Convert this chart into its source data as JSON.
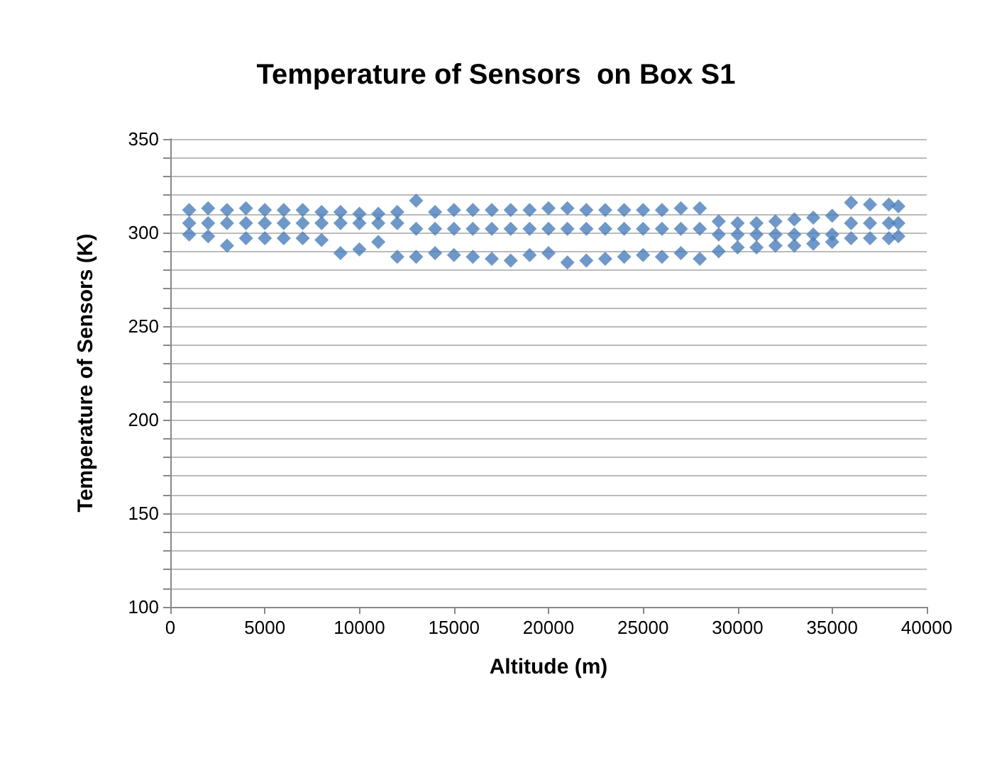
{
  "chart_data": {
    "type": "scatter",
    "title": "Temperature of Sensors  on Box S1",
    "xlabel": "Altitude (m)",
    "ylabel": "Temperature of Sensors (K)",
    "series": [
      {
        "color": "#4a7ebb",
        "x": [
          1000,
          2000,
          3000,
          4000,
          5000,
          6000,
          7000,
          8000,
          9000,
          10000,
          11000,
          12000,
          13000,
          14000,
          15000,
          16000,
          17000,
          18000,
          19000,
          20000,
          21000,
          22000,
          23000,
          24000,
          25000,
          26000,
          27000,
          28000,
          29000,
          30000,
          31000,
          32000,
          33000,
          34000,
          35000,
          36000,
          37000,
          38000,
          38500
        ],
        "values": [
          312,
          313,
          312,
          313,
          312,
          312,
          312,
          311,
          311,
          310,
          310,
          311,
          317,
          311,
          312,
          312,
          312,
          312,
          312,
          313,
          313,
          312,
          312,
          312,
          312,
          312,
          313,
          313,
          306,
          305,
          305,
          306,
          307,
          308,
          309,
          316,
          315,
          315,
          314
        ]
      },
      {
        "color": "#4a7ebb",
        "x": [
          1000,
          2000,
          3000,
          4000,
          5000,
          6000,
          7000,
          8000,
          9000,
          10000,
          11000,
          12000,
          13000,
          14000,
          15000,
          16000,
          17000,
          18000,
          19000,
          20000,
          21000,
          22000,
          23000,
          24000,
          25000,
          26000,
          27000,
          28000,
          29000,
          30000,
          31000,
          32000,
          33000,
          34000,
          35000,
          36000,
          37000,
          38000,
          38500
        ],
        "values": [
          305,
          305,
          305,
          305,
          305,
          305,
          305,
          305,
          305,
          305,
          305,
          305,
          302,
          302,
          302,
          302,
          302,
          302,
          302,
          302,
          302,
          302,
          302,
          302,
          302,
          302,
          302,
          302,
          299,
          299,
          299,
          299,
          299,
          299,
          299,
          305,
          305,
          305,
          305
        ]
      },
      {
        "color": "#4a7ebb",
        "x": [
          1000,
          2000,
          3000,
          4000,
          5000,
          6000,
          7000,
          8000,
          9000,
          10000,
          11000,
          12000,
          13000,
          14000,
          15000,
          16000,
          17000,
          18000,
          19000,
          20000,
          21000,
          22000,
          23000,
          24000,
          25000,
          26000,
          27000,
          28000,
          29000,
          30000,
          31000,
          32000,
          33000,
          34000,
          35000,
          36000,
          37000,
          38000,
          38500
        ],
        "values": [
          299,
          298,
          293,
          297,
          297,
          297,
          297,
          296,
          289,
          291,
          295,
          287,
          287,
          289,
          288,
          287,
          286,
          285,
          288,
          289,
          284,
          285,
          286,
          287,
          288,
          287,
          289,
          286,
          290,
          292,
          292,
          293,
          293,
          294,
          295,
          297,
          297,
          297,
          298
        ]
      }
    ],
    "xlim": [
      0,
      40000
    ],
    "xticks": [
      0,
      5000,
      10000,
      15000,
      20000,
      25000,
      30000,
      35000,
      40000
    ],
    "ylim": [
      100,
      350
    ],
    "yticks": [
      100,
      {
        "value": 110,
        "label": null
      },
      {
        "value": 120,
        "label": null
      },
      {
        "value": 130,
        "label": null
      },
      {
        "value": 140,
        "label": null
      },
      150,
      {
        "value": 160,
        "label": null
      },
      {
        "value": 170,
        "label": null
      },
      {
        "value": 180,
        "label": null
      },
      {
        "value": 190,
        "label": null
      },
      200,
      {
        "value": 210,
        "label": null
      },
      {
        "value": 220,
        "label": null
      },
      {
        "value": 230,
        "label": null
      },
      {
        "value": 240,
        "label": null
      },
      250,
      {
        "value": 260,
        "label": null
      },
      {
        "value": 270,
        "label": null
      },
      {
        "value": 280,
        "label": null
      },
      {
        "value": 290,
        "label": null
      },
      300,
      {
        "value": 310,
        "label": null
      },
      {
        "value": 320,
        "label": null
      },
      {
        "value": 330,
        "label": null
      },
      {
        "value": 340,
        "label": null
      },
      350
    ],
    "grid": "y",
    "marker": "diamond"
  }
}
